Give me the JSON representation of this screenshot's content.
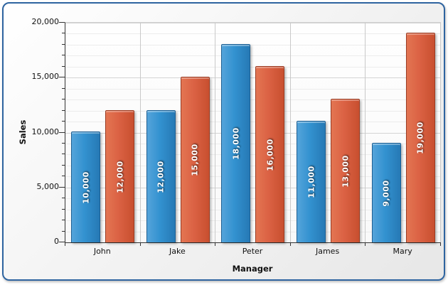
{
  "colors": {
    "frame_border": "#2E64A0",
    "series_blue": "#3392D0",
    "series_orange": "#DB6244",
    "value_label_text": "#FFFFFF",
    "major_gridline": "#D4D4D4",
    "minor_gridline": "#ECECEC"
  },
  "chart_data": {
    "type": "bar",
    "title": "",
    "xlabel": "Manager",
    "ylabel": "Sales",
    "categories": [
      "John",
      "Jake",
      "Peter",
      "James",
      "Mary"
    ],
    "series": [
      {
        "name": "blue-series",
        "color": "#3392D0",
        "values": [
          10000,
          12000,
          18000,
          11000,
          9000
        ]
      },
      {
        "name": "orange-series",
        "color": "#DB6244",
        "values": [
          12000,
          15000,
          16000,
          13000,
          19000
        ]
      }
    ],
    "value_labels": [
      [
        "10,000",
        "12,000",
        "18,000",
        "11,000",
        "9,000"
      ],
      [
        "12,000",
        "15,000",
        "16,000",
        "13,000",
        "19,000"
      ]
    ],
    "ylim": [
      0,
      20000
    ],
    "y_major_step": 5000,
    "y_minor_step": 1000,
    "y_tick_labels": [
      "0",
      "5,000",
      "10,000",
      "15,000",
      "20,000"
    ],
    "grid": true,
    "legend": "none"
  }
}
